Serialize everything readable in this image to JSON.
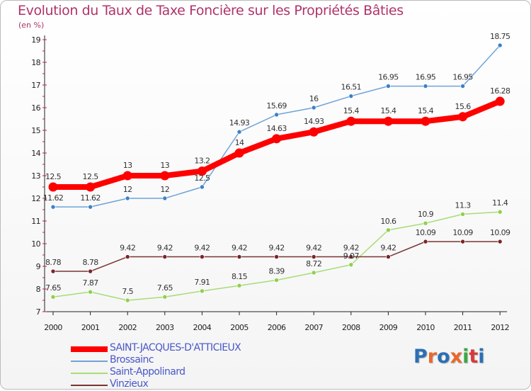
{
  "title": "Evolution du Taux de Taxe Foncière sur les Propriétés Bâties",
  "subtitle": "(en %)",
  "logo": {
    "text": "Proxiti",
    "letter_colors": [
      "#2b6fb5",
      "#e8692c",
      "#2b6fb5",
      "#e8692c",
      "#3aa843",
      "#d63b3b",
      "#2b6fb5"
    ]
  },
  "colors": {
    "title": "#b0336a",
    "legend_text": "#4a57c8",
    "axis": "#222222",
    "tick_mark": "#c0204a"
  },
  "chart_data": {
    "type": "line",
    "title": "Evolution du Taux de Taxe Foncière sur les Propriétés Bâties",
    "ylabel": "(en %)",
    "xlabel": "",
    "categories": [
      "2000",
      "2001",
      "2002",
      "2003",
      "2004",
      "2005",
      "2006",
      "2007",
      "2008",
      "2009",
      "2010",
      "2011",
      "2012"
    ],
    "ylim": [
      7,
      19
    ],
    "yticks": [
      "7",
      "8",
      "9",
      "10",
      "11",
      "12",
      "13",
      "14",
      "15",
      "16",
      "17",
      "18",
      "19"
    ],
    "grid": false,
    "legend_position": "bottom-left",
    "series": [
      {
        "name": "SAINT-JACQUES-D'ATTICIEUX",
        "color": "#ff0000",
        "marker": "#ff0000",
        "width": 8,
        "radius": 6.5,
        "values": [
          12.5,
          12.5,
          13,
          13,
          13.2,
          14,
          14.63,
          14.93,
          15.4,
          15.4,
          15.4,
          15.6,
          16.28
        ],
        "labels": [
          "12.5",
          "12.5",
          "13",
          "13",
          "13.2",
          "14",
          "14.63",
          "14.93",
          "15.4",
          "15.4",
          "15.4",
          "15.6",
          "16.28"
        ]
      },
      {
        "name": "Brossainc",
        "color": "#6fa3d8",
        "marker": "#3b80c8",
        "width": 1.5,
        "radius": 3,
        "values": [
          11.62,
          11.62,
          12,
          12,
          12.5,
          14.93,
          15.69,
          16,
          16.51,
          16.95,
          16.95,
          16.95,
          18.75
        ],
        "labels": [
          "11.62",
          "11.62",
          "12",
          "12",
          "12.5",
          "14.93",
          "15.69",
          "16",
          "16.51",
          "16.95",
          "16.95",
          "16.95",
          "18.75"
        ]
      },
      {
        "name": "Saint-Appolinard",
        "color": "#a8dc78",
        "marker": "#8fd04a",
        "width": 1.5,
        "radius": 3,
        "values": [
          7.65,
          7.87,
          7.5,
          7.65,
          7.91,
          8.15,
          8.39,
          8.72,
          9.07,
          10.6,
          10.9,
          11.3,
          11.4
        ],
        "labels": [
          "7.65",
          "7.87",
          "7.5",
          "7.65",
          "7.91",
          "8.15",
          "8.39",
          "8.72",
          "9.07",
          "10.6",
          "10.9",
          "11.3",
          "11.4"
        ]
      },
      {
        "name": "Vinzieux",
        "color": "#7b3434",
        "marker": "#7b2525",
        "width": 1.5,
        "radius": 3,
        "values": [
          8.78,
          8.78,
          9.42,
          9.42,
          9.42,
          9.42,
          9.42,
          9.42,
          9.42,
          9.42,
          10.09,
          10.09,
          10.09
        ],
        "labels": [
          "8.78",
          "8.78",
          "9.42",
          "9.42",
          "9.42",
          "9.42",
          "9.42",
          "9.42",
          "9.42",
          "9.42",
          "10.09",
          "10.09",
          "10.09"
        ]
      }
    ]
  }
}
